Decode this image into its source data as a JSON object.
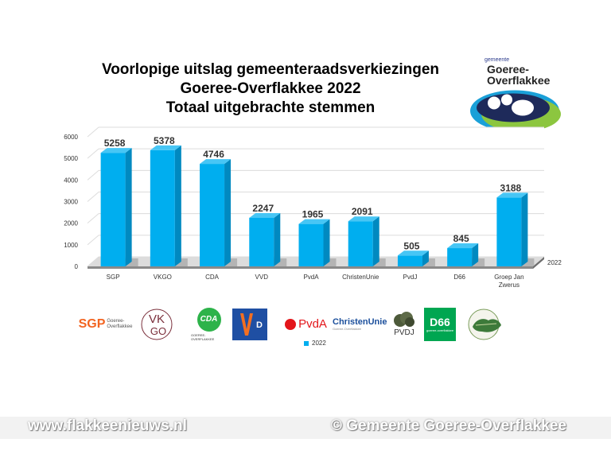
{
  "title": {
    "line1": "Voorlopige uitslag gemeenteraadsverkiezingen",
    "line2": "Goeree-Overflakkee 2022",
    "line3": "Totaal uitgebrachte stemmen"
  },
  "logo": {
    "small": "gemeente",
    "line1": "Goeree-",
    "line2": "Overflakkee"
  },
  "chart_data": {
    "type": "bar",
    "categories": [
      "SGP",
      "VKGO",
      "CDA",
      "VVD",
      "PvdA",
      "ChristenUnie",
      "PvdJ",
      "D66",
      "Groep Jan Zwerus"
    ],
    "series": [
      {
        "name": "2022",
        "values": [
          5258,
          5378,
          4746,
          2247,
          1965,
          2091,
          505,
          845,
          3188
        ]
      }
    ],
    "yticks": [
      0,
      1000,
      2000,
      3000,
      4000,
      5000,
      6000
    ],
    "ylim": [
      0,
      6000
    ],
    "depth_label": "2022",
    "legend_position": "bottom",
    "grid": true,
    "bar_color": "#00aeef"
  },
  "legend": {
    "label": "2022"
  },
  "party_logos": {
    "sgp": "SGP",
    "sgp_sub1": "Goeree-",
    "sgp_sub2": "Overflakkee",
    "vkgo": "VKGO",
    "cda": "CDA",
    "cda_sub": "GOEREE-OVERFLAKKEE",
    "vvd": "VVD",
    "pvda": "PvdA",
    "cu": "ChristenUnie",
    "cu_sub": "Goeree-Overflakkee",
    "pvdj": "PVDJ",
    "d66": "D66",
    "d66_sub": "goeree-overflakkee",
    "gjz": "Groep Jan Zwerus"
  },
  "watermark": {
    "left": "www.flakkeenieuws.nl",
    "right": "© Gemeente Goeree-Overflakkee"
  }
}
